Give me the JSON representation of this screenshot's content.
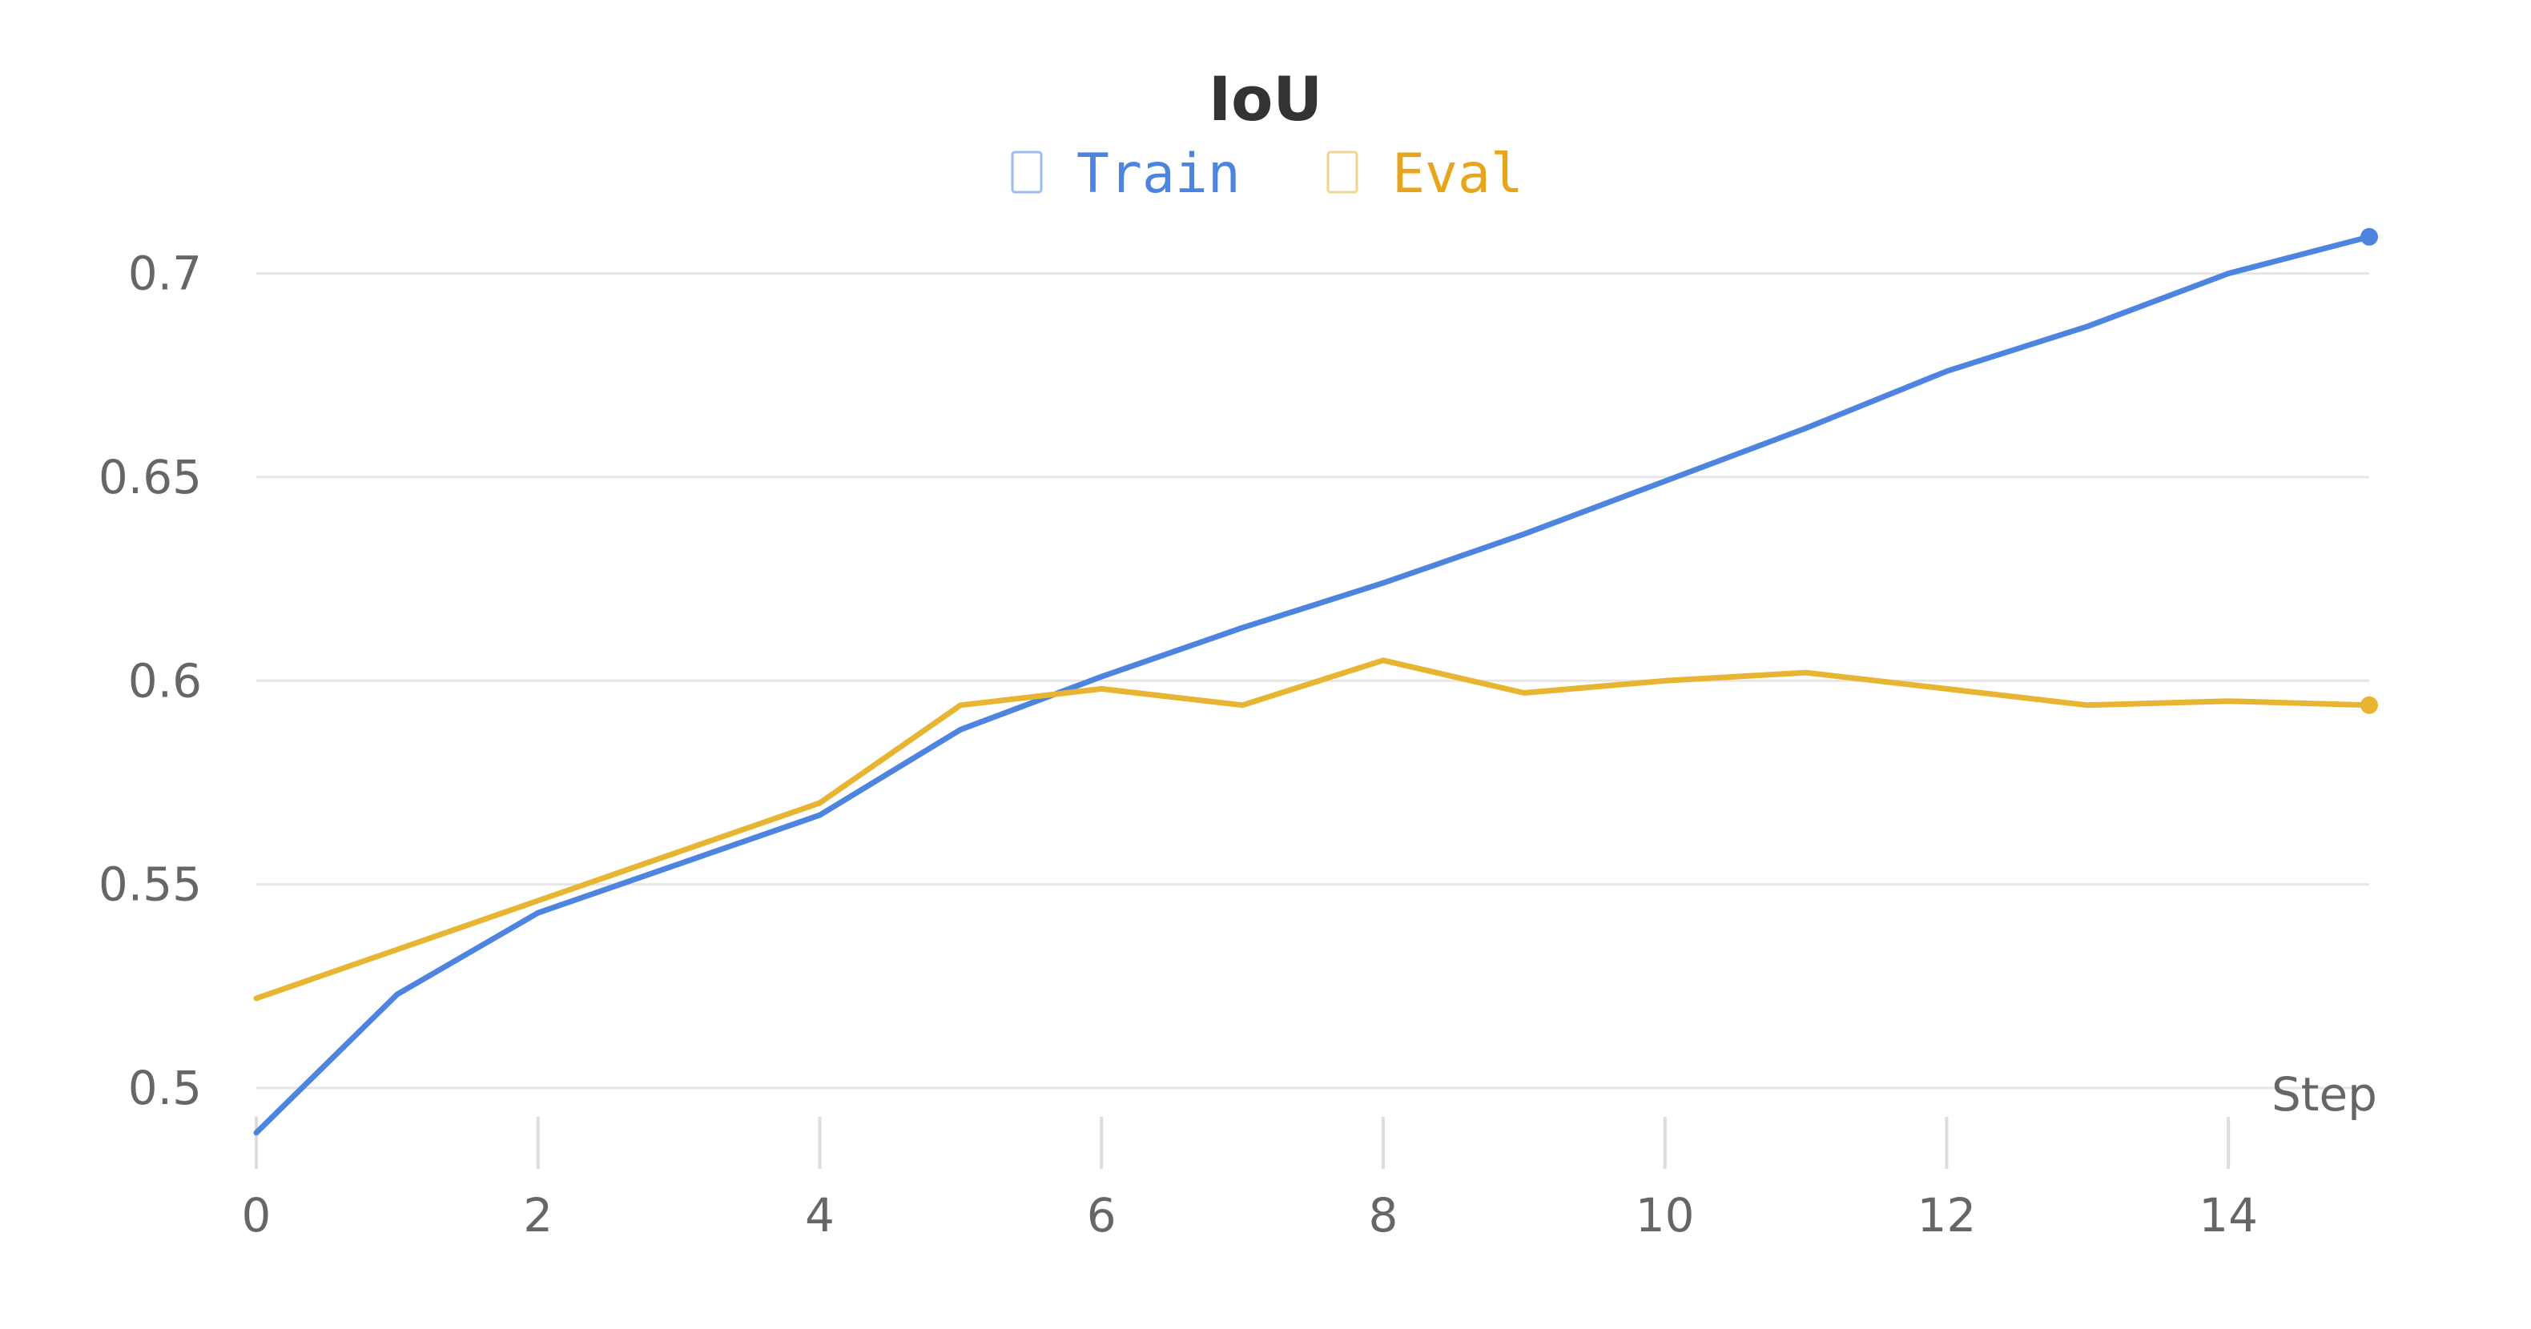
{
  "chart_data": {
    "type": "line",
    "title": "IoU",
    "xlabel": "Step",
    "ylabel": "",
    "xlim": [
      0,
      15
    ],
    "ylim": [
      0.488,
      0.718
    ],
    "x_ticks": [
      0,
      2,
      4,
      6,
      8,
      10,
      12,
      14
    ],
    "y_ticks": [
      0.5,
      0.55,
      0.6,
      0.65,
      0.7
    ],
    "y_tick_labels": [
      "0.5",
      "0.55",
      "0.6",
      "0.65",
      "0.7"
    ],
    "grid": "horizontal",
    "legend_position": "top",
    "x": [
      0,
      1,
      2,
      3,
      4,
      5,
      6,
      7,
      8,
      9,
      10,
      11,
      12,
      13,
      14,
      15
    ],
    "series": [
      {
        "name": "Train",
        "color": "#4c84e0",
        "values": [
          0.489,
          0.523,
          0.543,
          0.555,
          0.567,
          0.588,
          0.601,
          0.613,
          0.624,
          0.636,
          0.649,
          0.662,
          0.676,
          0.687,
          0.7,
          0.709
        ]
      },
      {
        "name": "Eval",
        "color": "#e8b532",
        "values": [
          0.522,
          0.534,
          0.546,
          0.558,
          0.57,
          0.594,
          0.598,
          0.594,
          0.605,
          0.597,
          0.6,
          0.602,
          0.598,
          0.594,
          0.595,
          0.594
        ]
      }
    ]
  },
  "legend": {
    "text_colors": [
      "#4c84e0",
      "#e8a51c"
    ]
  }
}
